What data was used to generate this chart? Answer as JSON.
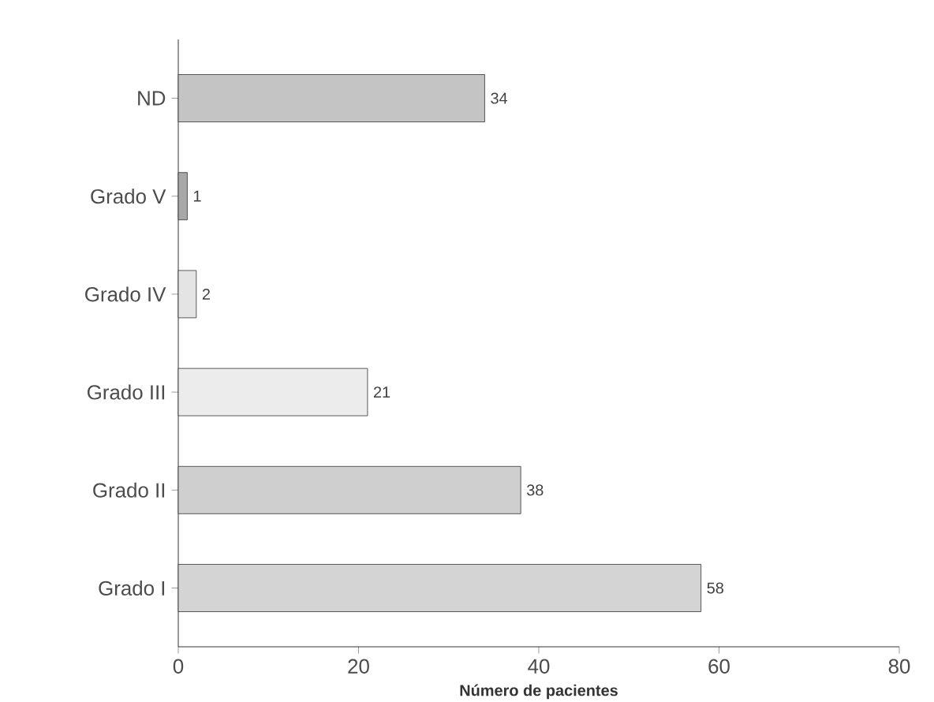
{
  "chart_data": {
    "type": "bar",
    "orientation": "horizontal",
    "xlabel": "Número de pacientes",
    "categories": [
      "ND",
      "Grado V",
      "Grado IV",
      "Grado III",
      "Grado II",
      "Grado I"
    ],
    "values": [
      34,
      1,
      2,
      21,
      38,
      58
    ],
    "colors": [
      "#c4c4c4",
      "#a8a8a8",
      "#e4e4e4",
      "#ececec",
      "#cfcfcf",
      "#d4d4d4"
    ],
    "xlim": [
      0,
      80
    ],
    "xticks": [
      0,
      20,
      40,
      60,
      80
    ],
    "data_labels": true
  }
}
